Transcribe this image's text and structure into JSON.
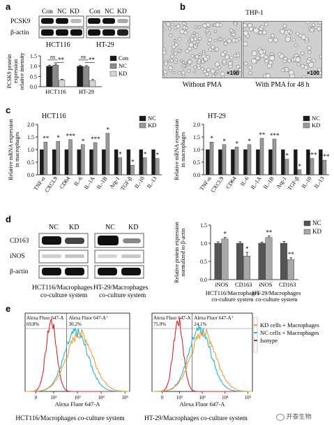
{
  "panels": {
    "a": {
      "label": "a",
      "blot": {
        "lanes_left": [
          "Con",
          "NC",
          "KD"
        ],
        "lanes_right": [
          "Con",
          "NC",
          "KD"
        ],
        "rows": [
          "PCSK9",
          "β-actin"
        ],
        "cell_left": "HCT116",
        "cell_right": "HT-29"
      }
    },
    "b": {
      "label": "b",
      "title": "THP-1",
      "left_caption": "Without PMA",
      "right_caption": "With PMA for 48 h",
      "magnification": "×100"
    },
    "c": {
      "label": "c"
    },
    "d": {
      "label": "d",
      "blot": {
        "lanes": [
          "NC",
          "KD"
        ],
        "rows": [
          "CD163",
          "iNOS",
          "β-actin"
        ],
        "cap_left_1": "HCT116/Macrophages",
        "cap_left_2": "co-culture system",
        "cap_right_1": "HT-29/Macrophages",
        "cap_right_2": "co-culture system"
      }
    },
    "e": {
      "label": "e",
      "caption_left": "HCT116/Macrophages co-culture system",
      "caption_right": "HT-29/Macrophages co-culture system",
      "legend": [
        "KD cells + Macrophages",
        "NC cells + Macrophages",
        "Isotype"
      ]
    }
  },
  "watermark": "开泰生物",
  "chart_data": [
    {
      "id": "a-bar",
      "type": "bar",
      "ylabel": "PCSK9 protein expression relative intensity",
      "ylim": [
        0,
        1.5
      ],
      "yticks": [
        "0.0",
        "0.5",
        "1.0",
        "1.5"
      ],
      "categories": [
        "HCT116",
        "HT-29"
      ],
      "series": [
        {
          "name": "Con",
          "values": [
            1.0,
            1.0
          ],
          "err": [
            0.05,
            0.04
          ],
          "color": "#1a1a1a"
        },
        {
          "name": "NC",
          "values": [
            1.05,
            0.98
          ],
          "err": [
            0.06,
            0.05
          ],
          "color": "#8a8a8a"
        },
        {
          "name": "KD",
          "values": [
            0.32,
            0.3
          ],
          "err": [
            0.04,
            0.05
          ],
          "color": "#d6d6d6"
        }
      ],
      "annotations": [
        {
          "group": "HCT116",
          "ns": "ns",
          "sig": "**"
        },
        {
          "group": "HT-29",
          "ns": "ns",
          "sig": "**"
        }
      ],
      "legend_position": "right"
    },
    {
      "id": "c-left",
      "type": "bar",
      "title": "HCT116",
      "ylabel": "Relative mRNA expression in macrophages",
      "ylim": [
        0,
        2.0
      ],
      "yticks": [
        "0.0",
        "0.5",
        "1.0",
        "1.5",
        "2.0"
      ],
      "categories": [
        "TNF-α",
        "CXCL9",
        "CD64",
        "IL-6",
        "IL-1A",
        "IL-1B",
        "Arg-1",
        "TGF-β",
        "IL-10",
        "IL-13"
      ],
      "series": [
        {
          "name": "NC",
          "values": [
            1.0,
            1.0,
            1.0,
            1.0,
            1.0,
            1.0,
            1.0,
            1.0,
            1.0,
            1.0
          ],
          "color": "#1a1a1a"
        },
        {
          "name": "KD",
          "values": [
            1.3,
            1.33,
            1.4,
            1.2,
            1.28,
            1.65,
            0.68,
            0.38,
            0.68,
            0.65
          ],
          "color": "#9a9a9a"
        }
      ],
      "significance": [
        "**",
        "*",
        "***",
        "*",
        "***",
        "*",
        "*",
        "*",
        "*",
        "*"
      ],
      "legend_position": "top-right"
    },
    {
      "id": "c-right",
      "type": "bar",
      "title": "HT-29",
      "ylabel": "Relative mRNA expression in macrophages",
      "ylim": [
        0,
        2.0
      ],
      "yticks": [
        "0.0",
        "0.5",
        "1.0",
        "1.5",
        "2.0"
      ],
      "categories": [
        "TNF-α",
        "CXCL9",
        "CD64",
        "IL-6",
        "IL-1A",
        "IL-1B",
        "Arg-1",
        "TGF-β",
        "IL-10",
        "IL-13"
      ],
      "series": [
        {
          "name": "NC",
          "values": [
            1.0,
            1.0,
            1.0,
            1.0,
            1.0,
            1.0,
            1.0,
            1.0,
            1.0,
            1.0
          ],
          "color": "#1a1a1a"
        },
        {
          "name": "KD",
          "values": [
            1.3,
            1.2,
            1.1,
            1.2,
            1.45,
            1.42,
            0.62,
            0.2,
            0.65,
            0.58
          ],
          "color": "#9a9a9a"
        }
      ],
      "significance": [
        "*",
        "*",
        "*",
        "*",
        "**",
        "***",
        "*",
        "*",
        "***",
        "***"
      ],
      "legend_position": "top-right"
    },
    {
      "id": "d-bar",
      "type": "bar",
      "ylabel": "Relative protein expression normalized to β-actin",
      "ylim": [
        0,
        1.5
      ],
      "yticks": [
        "0.0",
        "0.5",
        "1.0",
        "1.5"
      ],
      "categories": [
        "iNOS",
        "CD163",
        "iNOS",
        "CD163"
      ],
      "groups": [
        {
          "line1": "HCT116/Macrophages",
          "line2": "co-culture system"
        },
        {
          "line1": "HT-29/Macrophages",
          "line2": "co-culture system"
        }
      ],
      "series": [
        {
          "name": "NC",
          "values": [
            1.0,
            1.0,
            1.0,
            1.0
          ],
          "err": [
            0.04,
            0.04,
            0.03,
            0.05
          ],
          "color": "#555555"
        },
        {
          "name": "KD",
          "values": [
            1.12,
            0.65,
            1.16,
            0.55
          ],
          "err": [
            0.04,
            0.1,
            0.04,
            0.05
          ],
          "color": "#a8a8a8"
        }
      ],
      "significance": [
        "*",
        "*",
        "**",
        "**"
      ],
      "legend_position": "top-right"
    },
    {
      "id": "e-left",
      "type": "line",
      "xlabel": "Alexa Fluor 647-A",
      "gate_left_label": "Alexa Fluor 647-A",
      "gate_right_label": "Alexa Fluor 647-A⁺",
      "gate_left_value": "69.8%",
      "gate_right_value": "30.2%",
      "xticks": [
        "0",
        "10²",
        "10³",
        "10⁴",
        "10⁵"
      ],
      "series": [
        {
          "name": "Isotype",
          "color": "#e0202a",
          "peak": 1.9,
          "width": 0.22,
          "height": 0.95
        },
        {
          "name": "NC cells + Macrophages",
          "color": "#23b5d3",
          "peak": 2.95,
          "width": 0.5,
          "height": 0.8
        },
        {
          "name": "KD cells + Macrophages",
          "color": "#f59a30",
          "peak": 3.1,
          "width": 0.55,
          "height": 0.78
        }
      ]
    },
    {
      "id": "e-right",
      "type": "line",
      "xlabel": "Alexa Fluor 647-A",
      "gate_left_label": "Alexa Fluor 647-A",
      "gate_right_label": "Alexa Fluor 647-A⁺",
      "gate_left_value": "75.9%",
      "gate_right_value": "24.1%",
      "xticks": [
        "0",
        "10²",
        "10³",
        "10⁴",
        "10⁵"
      ],
      "series": [
        {
          "name": "Isotype",
          "color": "#e0202a",
          "peak": 1.95,
          "width": 0.22,
          "height": 0.95
        },
        {
          "name": "NC cells + Macrophages",
          "color": "#23b5d3",
          "peak": 2.9,
          "width": 0.5,
          "height": 0.82
        },
        {
          "name": "KD cells + Macrophages",
          "color": "#f59a30",
          "peak": 3.05,
          "width": 0.55,
          "height": 0.8
        }
      ]
    }
  ]
}
